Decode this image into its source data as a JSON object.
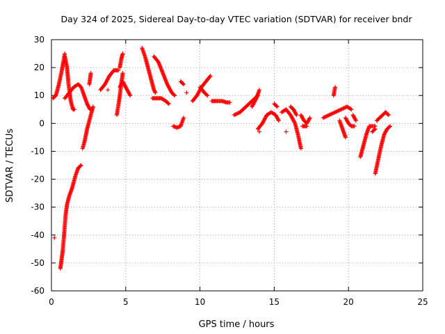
{
  "chart_data": {
    "type": "scatter",
    "title": "Day 324 of 2025, Sidereal Day-to-day VTEC variation (SDTVAR) for receiver bndr",
    "xlabel": "GPS time / hours",
    "ylabel": "SDTVAR / TECUs",
    "xlim": [
      0,
      25
    ],
    "ylim": [
      -60,
      30
    ],
    "xticks": [
      0,
      5,
      10,
      15,
      20,
      25
    ],
    "yticks": [
      -60,
      -50,
      -40,
      -30,
      -20,
      -10,
      0,
      10,
      20,
      30
    ],
    "xtick_labels": [
      "0",
      "5",
      "10",
      "15",
      "20",
      "25"
    ],
    "ytick_labels": [
      "-60",
      "-50",
      "-40",
      "-30",
      "-20",
      "-10",
      "0",
      "10",
      "20",
      "30"
    ],
    "grid": true,
    "marker": "plus",
    "color": "#ff0000",
    "series": [
      {
        "name": "s01",
        "x": [
          0.1,
          0.3,
          0.5,
          0.7,
          0.9
        ],
        "y": [
          9,
          10,
          14,
          19,
          25
        ]
      },
      {
        "name": "s02",
        "x": [
          0.2
        ],
        "y": [
          -41
        ]
      },
      {
        "name": "s03",
        "x": [
          0.6,
          0.75,
          0.85,
          0.95,
          1.05,
          1.2,
          1.4,
          1.6,
          1.8,
          2.0
        ],
        "y": [
          -52,
          -46,
          -40,
          -33,
          -29,
          -26,
          -23,
          -19,
          -16,
          -15
        ]
      },
      {
        "name": "s04",
        "x": [
          0.9,
          1.05,
          1.15,
          1.3,
          1.45,
          1.55
        ],
        "y": [
          24,
          20,
          14,
          8,
          5,
          5
        ]
      },
      {
        "name": "s05",
        "x": [
          0.9,
          1.2,
          1.5,
          1.8,
          2.0,
          2.2,
          2.4,
          2.6
        ],
        "y": [
          9,
          11,
          13,
          14,
          13,
          10,
          7,
          5
        ]
      },
      {
        "name": "s06",
        "x": [
          2.1,
          2.25,
          2.4,
          2.55,
          2.7,
          2.8
        ],
        "y": [
          -9,
          -6,
          -2,
          1,
          4,
          6
        ]
      },
      {
        "name": "s07",
        "x": [
          2.55,
          2.65
        ],
        "y": [
          14,
          18
        ]
      },
      {
        "name": "s08",
        "x": [
          3.3,
          3.6,
          3.9,
          4.2,
          4.5
        ],
        "y": [
          12,
          14,
          17,
          19,
          19
        ]
      },
      {
        "name": "s09",
        "x": [
          3.8
        ],
        "y": [
          12
        ]
      },
      {
        "name": "s10",
        "x": [
          4.4,
          4.55,
          4.7,
          4.8
        ],
        "y": [
          3,
          8,
          14,
          18
        ]
      },
      {
        "name": "s11",
        "x": [
          4.6,
          4.8,
          5.0,
          5.3
        ],
        "y": [
          13,
          15,
          13,
          10
        ]
      },
      {
        "name": "s12",
        "x": [
          4.6,
          4.7,
          4.8
        ],
        "y": [
          20,
          23,
          25
        ]
      },
      {
        "name": "s13",
        "x": [
          6.1,
          6.3,
          6.5,
          6.7,
          6.9,
          7.0
        ],
        "y": [
          27,
          24,
          20,
          16,
          12,
          11
        ]
      },
      {
        "name": "s14",
        "x": [
          6.8,
          7.1,
          7.4,
          7.7,
          7.9
        ],
        "y": [
          9,
          9,
          9,
          8,
          7
        ]
      },
      {
        "name": "s15",
        "x": [
          6.9,
          7.2,
          7.5,
          7.8,
          8.1,
          8.3
        ],
        "y": [
          24,
          22,
          18,
          14,
          11,
          10
        ]
      },
      {
        "name": "s16",
        "x": [
          8.2,
          8.45,
          8.7,
          8.9
        ],
        "y": [
          -1,
          -1.5,
          -1,
          2
        ]
      },
      {
        "name": "s17",
        "x": [
          8.7,
          8.9
        ],
        "y": [
          15,
          14
        ]
      },
      {
        "name": "s18",
        "x": [
          9.1
        ],
        "y": [
          11
        ]
      },
      {
        "name": "s19",
        "x": [
          9.5,
          9.8,
          10.1,
          10.4,
          10.7
        ],
        "y": [
          8,
          10,
          13,
          15,
          17
        ]
      },
      {
        "name": "s20",
        "x": [
          10.0,
          10.3,
          10.5
        ],
        "y": [
          13,
          11,
          10
        ]
      },
      {
        "name": "s21",
        "x": [
          10.8,
          11.1,
          11.5,
          11.8,
          12.0
        ],
        "y": [
          8,
          8,
          8,
          7.5,
          7.5
        ]
      },
      {
        "name": "s22",
        "x": [
          12.3,
          12.7,
          13.1,
          13.5,
          13.9
        ],
        "y": [
          3,
          4,
          6,
          8,
          10
        ]
      },
      {
        "name": "s23",
        "x": [
          13.5,
          13.8,
          14.0
        ],
        "y": [
          6,
          9,
          12
        ]
      },
      {
        "name": "s24",
        "x": [
          13.9,
          14.2,
          14.5,
          14.8,
          15.1,
          15.3
        ],
        "y": [
          -2,
          0,
          3,
          4,
          3,
          1
        ]
      },
      {
        "name": "s25",
        "x": [
          14.0
        ],
        "y": [
          -3
        ]
      },
      {
        "name": "s26",
        "x": [
          15.0,
          15.2
        ],
        "y": [
          7,
          6
        ]
      },
      {
        "name": "s27",
        "x": [
          15.5,
          15.8,
          16.1,
          16.4,
          16.6,
          16.8
        ],
        "y": [
          4,
          5,
          3,
          0,
          -4,
          -9
        ]
      },
      {
        "name": "s28",
        "x": [
          15.8
        ],
        "y": [
          -3
        ]
      },
      {
        "name": "s29",
        "x": [
          16.1,
          16.3,
          16.5
        ],
        "y": [
          6,
          5,
          3
        ]
      },
      {
        "name": "s30",
        "x": [
          16.8,
          17.0,
          17.2,
          17.4
        ],
        "y": [
          3,
          1,
          0,
          2
        ]
      },
      {
        "name": "s31",
        "x": [
          16.9,
          17.2
        ],
        "y": [
          -1,
          -1
        ]
      },
      {
        "name": "s32",
        "x": [
          18.3,
          18.7,
          19.1,
          19.5,
          19.9,
          20.2
        ],
        "y": [
          2,
          3,
          4,
          5,
          6,
          5
        ]
      },
      {
        "name": "s33",
        "x": [
          19.0,
          19.1
        ],
        "y": [
          10,
          13
        ]
      },
      {
        "name": "s34",
        "x": [
          19.4,
          19.6,
          19.8
        ],
        "y": [
          1,
          -2,
          -5
        ]
      },
      {
        "name": "s35",
        "x": [
          19.8,
          20.0,
          20.2,
          20.4
        ],
        "y": [
          2,
          0,
          -1,
          -1
        ]
      },
      {
        "name": "s36",
        "x": [
          20.3,
          20.5
        ],
        "y": [
          3,
          1
        ]
      },
      {
        "name": "s37",
        "x": [
          20.8,
          21.0,
          21.2,
          21.4,
          21.6,
          21.8
        ],
        "y": [
          -12,
          -8,
          -4,
          -1,
          -1,
          -1
        ]
      },
      {
        "name": "s38",
        "x": [
          21.6,
          21.8
        ],
        "y": [
          -3,
          -2
        ]
      },
      {
        "name": "s39",
        "x": [
          21.8,
          22.0,
          22.2,
          22.4,
          22.6,
          22.8
        ],
        "y": [
          -18,
          -13,
          -8,
          -4,
          -2,
          -1
        ]
      },
      {
        "name": "s40",
        "x": [
          21.9,
          22.1,
          22.3,
          22.5,
          22.7
        ],
        "y": [
          1,
          2,
          3,
          4,
          3
        ]
      }
    ]
  }
}
